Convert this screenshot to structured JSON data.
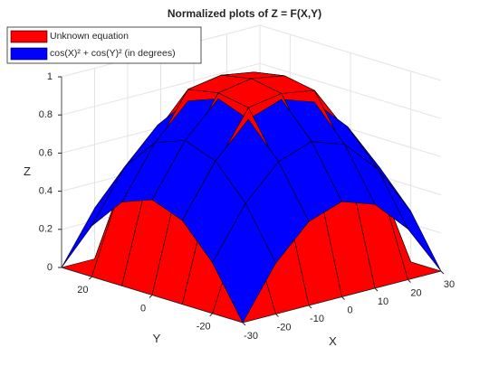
{
  "chart_data": {
    "type": "surface",
    "title": "Normalized plots of Z = F(X,Y)",
    "xlabel": "X",
    "ylabel": "Y",
    "zlabel": "Z",
    "x": [
      -30,
      -20,
      -10,
      0,
      10,
      20,
      30
    ],
    "y": [
      -30,
      -20,
      -10,
      0,
      10,
      20,
      30
    ],
    "xlim": [
      -30,
      30
    ],
    "ylim": [
      -30,
      30
    ],
    "zlim": [
      0,
      1
    ],
    "xticks": [
      -30,
      -20,
      -10,
      0,
      10,
      20,
      30
    ],
    "yticks": [
      -20,
      0,
      20
    ],
    "zticks": [
      0,
      0.2,
      0.4,
      0.6,
      0.8,
      1
    ],
    "grid": true,
    "legend_location": "northwest",
    "series": [
      {
        "name": "Unknown equation",
        "color": "#ff0000",
        "z": [
          [
            0,
            0,
            0,
            0,
            0,
            0,
            0
          ],
          [
            0,
            0.49,
            0.679,
            0.7,
            0.679,
            0.49,
            0
          ],
          [
            0,
            0.679,
            0.941,
            0.97,
            0.941,
            0.679,
            0
          ],
          [
            0,
            0.7,
            0.97,
            1,
            0.97,
            0.7,
            0
          ],
          [
            0,
            0.679,
            0.941,
            0.97,
            0.941,
            0.679,
            0
          ],
          [
            0,
            0.49,
            0.679,
            0.7,
            0.679,
            0.49,
            0
          ],
          [
            0,
            0,
            0,
            0,
            0,
            0,
            0
          ]
        ]
      },
      {
        "name": "cos(X)² + cos(Y)² (in degrees)",
        "color": "#0000ff",
        "z": [
          [
            0,
            0.266,
            0.44,
            0.5,
            0.44,
            0.266,
            0
          ],
          [
            0.266,
            0.532,
            0.706,
            0.766,
            0.706,
            0.532,
            0.266
          ],
          [
            0.44,
            0.706,
            0.88,
            0.94,
            0.88,
            0.706,
            0.44
          ],
          [
            0.5,
            0.766,
            0.94,
            1,
            0.94,
            0.766,
            0.5
          ],
          [
            0.44,
            0.706,
            0.88,
            0.94,
            0.88,
            0.706,
            0.44
          ],
          [
            0.266,
            0.532,
            0.706,
            0.766,
            0.706,
            0.532,
            0.266
          ],
          [
            0,
            0.266,
            0.44,
            0.5,
            0.44,
            0.266,
            0
          ]
        ]
      }
    ]
  }
}
